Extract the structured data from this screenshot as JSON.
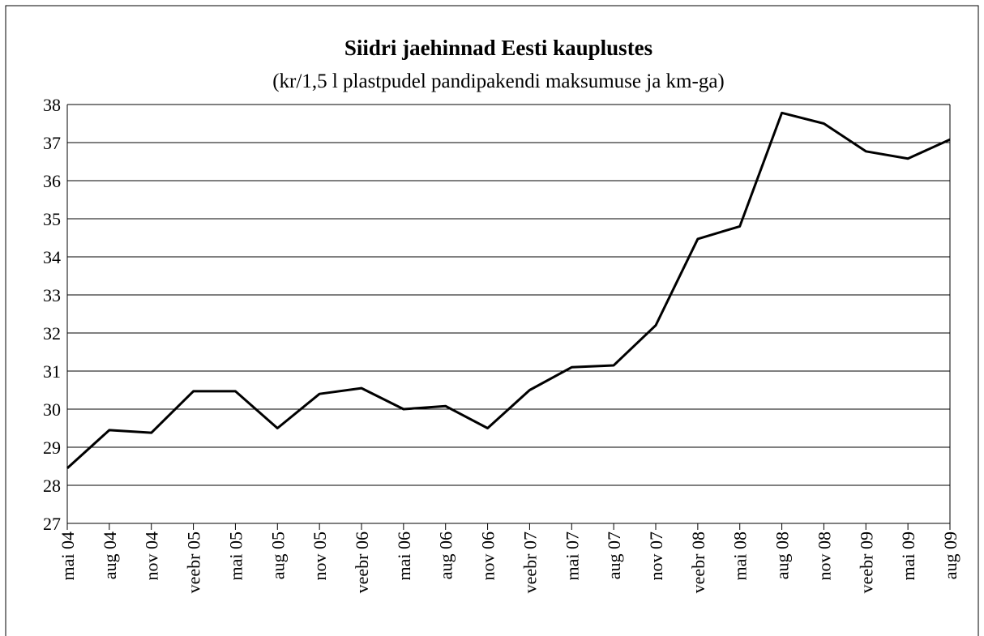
{
  "chart_data": {
    "type": "line",
    "title": "Siidri jaehinnad Eesti kauplustes",
    "subtitle": "(kr/1,5 l plastpudel pandipakendi maksumuse ja km-ga)",
    "categories": [
      "mai 04",
      "aug 04",
      "nov 04",
      "veebr 05",
      "mai 05",
      "aug 05",
      "nov 05",
      "veebr 06",
      "mai 06",
      "aug 06",
      "nov 06",
      "veebr 07",
      "mai 07",
      "aug 07",
      "nov 07",
      "veebr 08",
      "mai 08",
      "aug 08",
      "nov 08",
      "veebr 09",
      "mai 09",
      "aug 09"
    ],
    "series": [
      {
        "color": "#000000",
        "values": [
          28.45,
          29.45,
          29.38,
          30.47,
          30.47,
          29.5,
          30.4,
          30.55,
          30.0,
          30.08,
          29.5,
          30.5,
          31.1,
          31.15,
          32.2,
          34.47,
          34.8,
          37.78,
          37.5,
          36.77,
          36.58,
          37.08
        ]
      }
    ],
    "ylim": [
      27,
      38
    ],
    "yticks": [
      27,
      28,
      29,
      30,
      31,
      32,
      33,
      34,
      35,
      36,
      37,
      38
    ],
    "grid": true
  }
}
